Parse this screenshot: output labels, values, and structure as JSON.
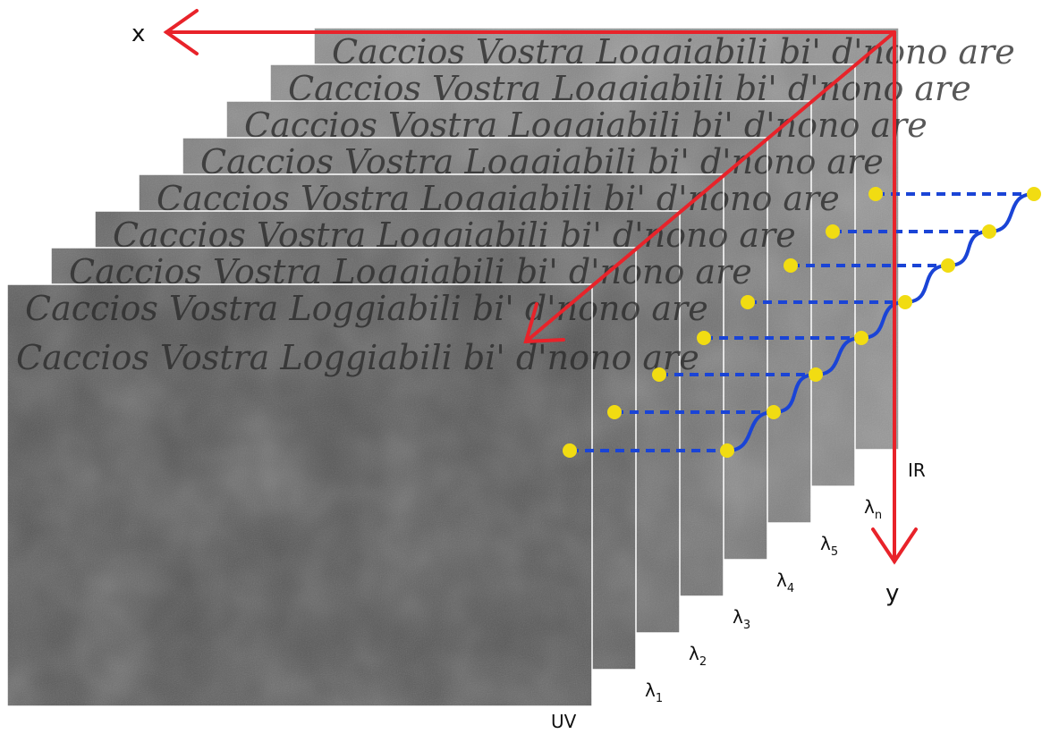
{
  "axes": {
    "x_label": "x",
    "y_label": "y"
  },
  "manuscript_text": "Caccios Vostra Loggiabili bi' d'nono are",
  "bands": [
    {
      "id": "uv",
      "label": "UV",
      "sub": ""
    },
    {
      "id": "l1",
      "label": "λ",
      "sub": "1"
    },
    {
      "id": "l2",
      "label": "λ",
      "sub": "2"
    },
    {
      "id": "l3",
      "label": "λ",
      "sub": "3"
    },
    {
      "id": "l4",
      "label": "λ",
      "sub": "4"
    },
    {
      "id": "l5",
      "label": "λ",
      "sub": "5"
    },
    {
      "id": "ln",
      "label": "λ",
      "sub": "n"
    },
    {
      "id": "ir",
      "label": "IR",
      "sub": ""
    }
  ],
  "colors": {
    "axis": "#e8232a",
    "spectrum_curve": "#1a44d6",
    "dashed_link": "#1a44d6",
    "sample_point": "#f1dc12"
  },
  "icons": {
    "point_marker": "yellow-dot-icon",
    "axis_arrow": "red-arrow-icon"
  }
}
